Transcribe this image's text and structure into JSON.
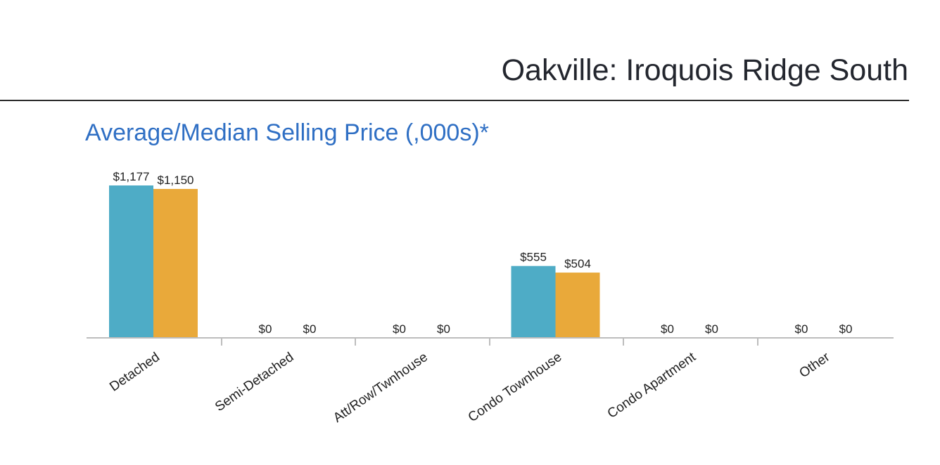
{
  "header": {
    "title": "Oakville: Iroquois Ridge South"
  },
  "chart_data": {
    "type": "bar",
    "title": "Average/Median Selling Price (,000s)*",
    "categories": [
      "Detached",
      "Semi-Detached",
      "Att/Row/Twnhouse",
      "Condo Townhouse",
      "Condo Apartment",
      "Other"
    ],
    "series": [
      {
        "color": "#4eacc6",
        "values": [
          1177,
          0,
          0,
          555,
          0,
          0
        ],
        "labels": [
          "$1,177",
          "$0",
          "$0",
          "$555",
          "$0",
          "$0"
        ]
      },
      {
        "color": "#e9a93a",
        "values": [
          1150,
          0,
          0,
          504,
          0,
          0
        ],
        "labels": [
          "$1,150",
          "$0",
          "$0",
          "$504",
          "$0",
          "$0"
        ]
      }
    ],
    "ylim": [
      0,
      1177
    ],
    "grid": false,
    "legend": "none"
  }
}
